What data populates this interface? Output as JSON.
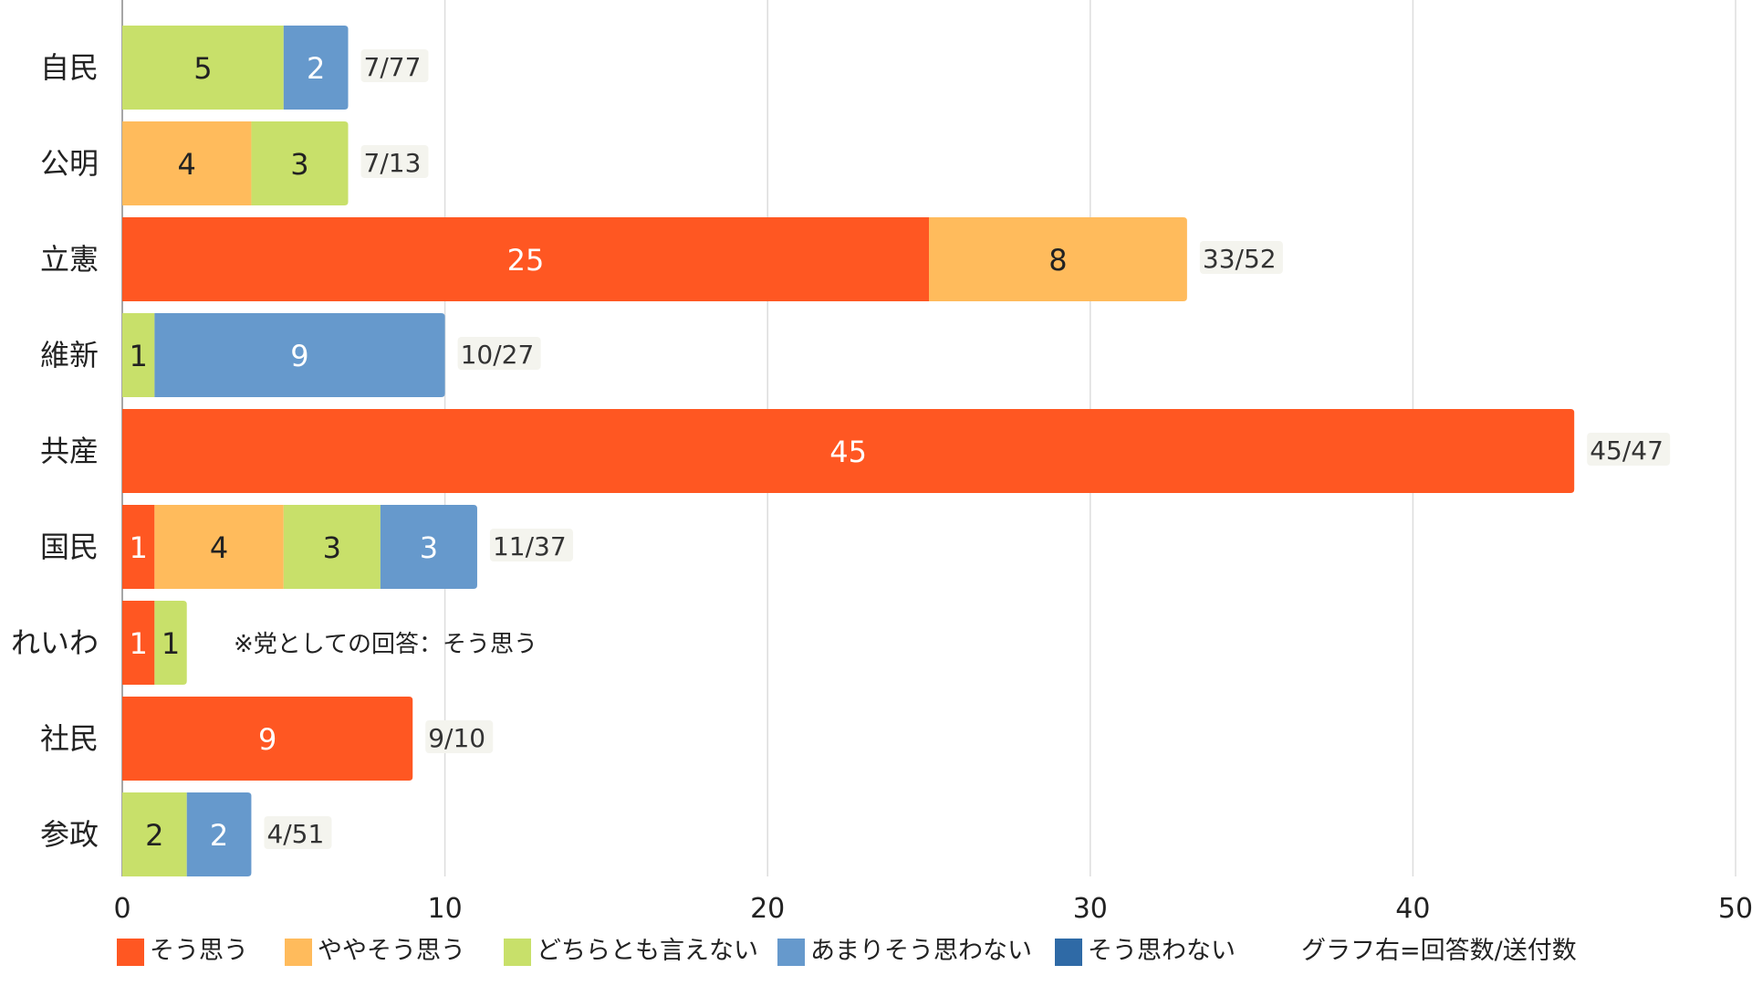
{
  "chart_data": {
    "type": "bar",
    "orientation": "horizontal",
    "stacked": true,
    "categories": [
      "自民",
      "公明",
      "立憲",
      "維新",
      "共産",
      "国民",
      "れいわ",
      "社民",
      "参政"
    ],
    "series": [
      {
        "name": "そう思う",
        "color": "#ff5722",
        "values": [
          0,
          0,
          25,
          0,
          45,
          1,
          1,
          9,
          0
        ]
      },
      {
        "name": "ややそう思う",
        "color": "#ffbb5c",
        "values": [
          0,
          4,
          8,
          0,
          0,
          4,
          0,
          0,
          0
        ]
      },
      {
        "name": "どちらとも言えない",
        "color": "#c8e06a",
        "values": [
          5,
          3,
          0,
          1,
          0,
          3,
          1,
          0,
          2
        ]
      },
      {
        "name": "あまりそう思わない",
        "color": "#6699cc",
        "values": [
          2,
          0,
          0,
          9,
          0,
          3,
          0,
          0,
          2
        ]
      },
      {
        "name": "そう思わない",
        "color": "#2f6aa6",
        "values": [
          0,
          0,
          0,
          0,
          0,
          0,
          0,
          0,
          0
        ]
      }
    ],
    "totals": [
      "7/77",
      "7/13",
      "33/52",
      "10/27",
      "45/47",
      "11/37",
      "",
      "9/10",
      "4/51"
    ],
    "annotations": [
      {
        "category": "れいわ",
        "text": "※党としての回答：そう思う"
      }
    ],
    "legend_note": "グラフ右=回答数/送付数",
    "xlim": [
      0,
      50
    ],
    "x_ticks": [
      0,
      10,
      20,
      30,
      40,
      50
    ],
    "grid": true,
    "legend_position": "bottom",
    "title": "",
    "xlabel": "",
    "ylabel": ""
  }
}
